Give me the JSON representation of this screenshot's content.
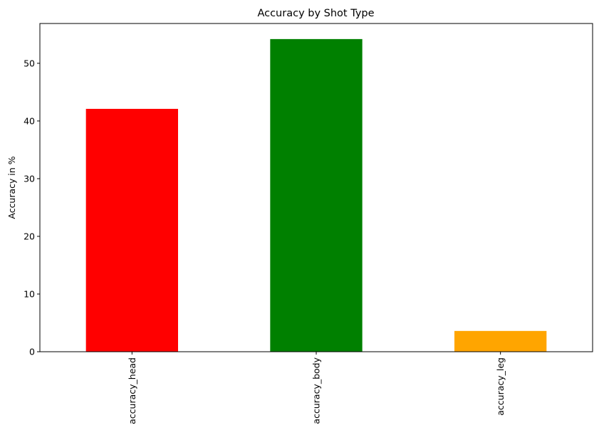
{
  "chart_data": {
    "type": "bar",
    "title": "Accuracy by Shot Type",
    "xlabel": "",
    "ylabel": "Accuracy in %",
    "categories": [
      "accuracy_head",
      "accuracy_body",
      "accuracy_leg"
    ],
    "values": [
      42.1,
      54.2,
      3.6
    ],
    "colors": [
      "#ff0000",
      "#008000",
      "#ffa500"
    ],
    "ylim": [
      0,
      56.9
    ],
    "yticks": [
      0,
      10,
      20,
      30,
      40,
      50
    ],
    "grid": false,
    "legend": "none",
    "x_tick_rotation": "vertical"
  }
}
